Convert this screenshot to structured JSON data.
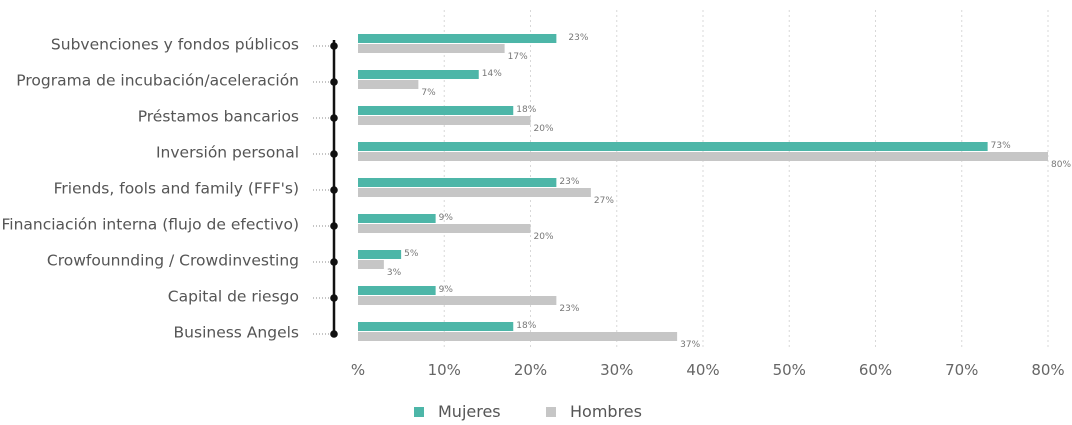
{
  "chart_data": {
    "type": "bar",
    "orientation": "horizontal",
    "title": "",
    "xlabel": "",
    "ylabel": "",
    "categories": [
      "Subvenciones y fondos públicos",
      "Programa de incubación/aceleración",
      "Préstamos bancarios",
      "Inversión personal",
      "Friends, fools and family (FFF's)",
      "Financiación interna (flujo de efectivo)",
      "Crowfounnding / Crowdinvesting",
      "Capital de riesgo",
      "Business Angels"
    ],
    "series": [
      {
        "name": "Mujeres",
        "color": "#4db6a8",
        "values": [
          23,
          14,
          18,
          73,
          23,
          9,
          5,
          9,
          18
        ],
        "labels": [
          "23%",
          "14%",
          "18%",
          "73%",
          "23%",
          "9%",
          "5%",
          "9%",
          "18%"
        ]
      },
      {
        "name": "Hombres",
        "color": "#c6c6c6",
        "values": [
          17,
          7,
          20,
          80,
          27,
          20,
          3,
          23,
          37
        ],
        "labels": [
          "17%",
          "7%",
          "20%",
          "80%",
          "27%",
          "20%",
          "3%",
          "23%",
          "37%"
        ]
      }
    ],
    "xlim": [
      0,
      80
    ],
    "xticks": [
      0,
      10,
      20,
      30,
      40,
      50,
      60,
      70,
      80
    ],
    "xtick_labels": [
      "%",
      "10%",
      "20%",
      "30%",
      "40%",
      "50%",
      "60%",
      "70%",
      "80%"
    ],
    "grid": true,
    "legend_position": "bottom-center"
  }
}
